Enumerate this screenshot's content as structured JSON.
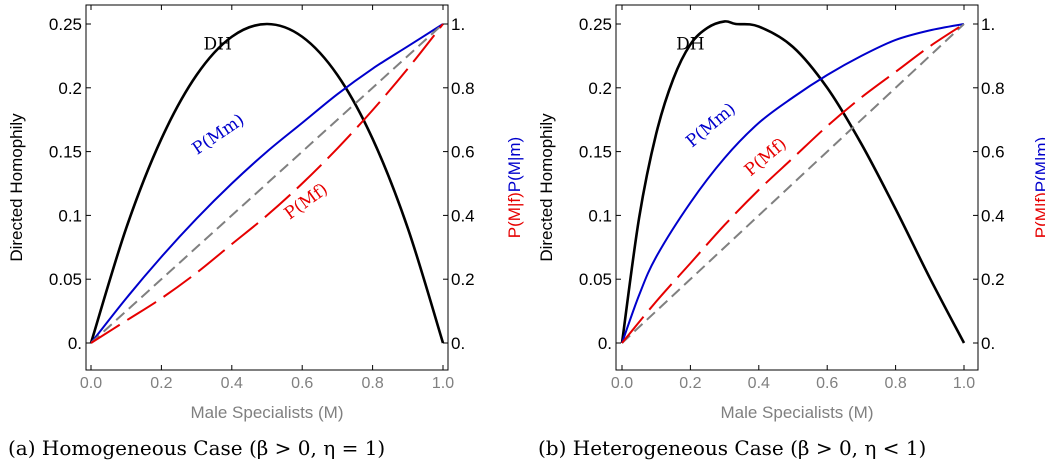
{
  "figure": {
    "captions": [
      "(a) Homogeneous Case (β > 0, η = 1)",
      "(b) Heterogeneous Case (β > 0, η < 1)"
    ]
  },
  "chart_data": [
    {
      "type": "line",
      "panel": "a",
      "xlabel": "Male Specialists (M)",
      "ylabel_left": "Directed Homophily",
      "ylabel_right_parts": [
        {
          "text": "P(M|f)",
          "color": "#e60000"
        },
        {
          "text": "P(M|m)",
          "color": "#0000cc"
        }
      ],
      "xlim": [
        0,
        1
      ],
      "ylim_left": [
        0,
        0.25
      ],
      "ylim_right": [
        0,
        1
      ],
      "x_ticks": [
        "0.0",
        "0.2",
        "0.4",
        "0.6",
        "0.8",
        "1.0"
      ],
      "y_ticks_left": [
        "0.",
        "0.05",
        "0.1",
        "0.15",
        "0.2",
        "0.25"
      ],
      "y_ticks_right": [
        "0.",
        "0.2",
        "0.4",
        "0.6",
        "0.8",
        "1."
      ],
      "grid": false,
      "series": [
        {
          "name": "DH",
          "axis": "left",
          "color": "#000000",
          "style": "solid",
          "x": [
            0,
            0.1,
            0.2,
            0.3,
            0.4,
            0.5,
            0.6,
            0.7,
            0.8,
            0.9,
            1.0
          ],
          "y": [
            0,
            0.09,
            0.16,
            0.21,
            0.24,
            0.25,
            0.24,
            0.21,
            0.16,
            0.09,
            0
          ]
        },
        {
          "name": "P(Mm)",
          "axis": "right",
          "color": "#0000cc",
          "style": "solid",
          "x": [
            0,
            0.1,
            0.2,
            0.3,
            0.4,
            0.5,
            0.6,
            0.7,
            0.8,
            0.9,
            1.0
          ],
          "y": [
            0,
            0.14,
            0.27,
            0.39,
            0.5,
            0.6,
            0.69,
            0.78,
            0.86,
            0.93,
            1.0
          ]
        },
        {
          "name": "",
          "axis": "right",
          "color": "#808080",
          "style": "dashed",
          "x": [
            0,
            1.0
          ],
          "y": [
            0,
            1.0
          ]
        },
        {
          "name": "P(Mf)",
          "axis": "right",
          "color": "#e60000",
          "style": "longdash",
          "x": [
            0,
            0.1,
            0.2,
            0.3,
            0.4,
            0.5,
            0.6,
            0.7,
            0.8,
            0.9,
            1.0
          ],
          "y": [
            0,
            0.07,
            0.14,
            0.22,
            0.31,
            0.4,
            0.5,
            0.61,
            0.73,
            0.86,
            1.0
          ]
        }
      ],
      "annotations": [
        {
          "text": "DH",
          "x": 0.36,
          "y": 0.23,
          "axis": "left",
          "color": "#000000",
          "rotate": 0
        },
        {
          "text": "P(Mm)",
          "x": 0.37,
          "y": 0.64,
          "axis": "right",
          "color": "#0000cc",
          "rotate": -34
        },
        {
          "text": "P(Mf)",
          "x": 0.62,
          "y": 0.43,
          "axis": "right",
          "color": "#e60000",
          "rotate": -36
        }
      ]
    },
    {
      "type": "line",
      "panel": "b",
      "xlabel": "Male Specialists (M)",
      "ylabel_left": "Directed Homophily",
      "ylabel_right_parts": [
        {
          "text": "P(M|f)",
          "color": "#e60000"
        },
        {
          "text": "P(M|m)",
          "color": "#0000cc"
        }
      ],
      "xlim": [
        0,
        1
      ],
      "ylim_left": [
        0,
        0.25
      ],
      "ylim_right": [
        0,
        1
      ],
      "x_ticks": [
        "0.0",
        "0.2",
        "0.4",
        "0.6",
        "0.8",
        "1.0"
      ],
      "y_ticks_left": [
        "0.",
        "0.05",
        "0.1",
        "0.15",
        "0.2",
        "0.25"
      ],
      "y_ticks_right": [
        "0.",
        "0.2",
        "0.4",
        "0.6",
        "0.8",
        "1."
      ],
      "grid": false,
      "series": [
        {
          "name": "DH",
          "axis": "left",
          "color": "#000000",
          "style": "solid",
          "x": [
            0,
            0.05,
            0.1,
            0.15,
            0.2,
            0.25,
            0.3,
            0.333,
            0.4,
            0.5,
            0.6,
            0.7,
            0.8,
            0.9,
            1.0
          ],
          "y": [
            0,
            0.098,
            0.164,
            0.207,
            0.234,
            0.247,
            0.252,
            0.25,
            0.248,
            0.232,
            0.2,
            0.156,
            0.105,
            0.051,
            0
          ]
        },
        {
          "name": "P(Mm)",
          "axis": "right",
          "color": "#0000cc",
          "style": "solid",
          "x": [
            0,
            0.05,
            0.1,
            0.2,
            0.3,
            0.4,
            0.5,
            0.6,
            0.7,
            0.8,
            0.9,
            1.0
          ],
          "y": [
            0,
            0.15,
            0.27,
            0.44,
            0.58,
            0.69,
            0.77,
            0.84,
            0.9,
            0.95,
            0.98,
            1.0
          ]
        },
        {
          "name": "",
          "axis": "right",
          "color": "#808080",
          "style": "dashed",
          "x": [
            0,
            1.0
          ],
          "y": [
            0,
            1.0
          ]
        },
        {
          "name": "P(Mf)",
          "axis": "right",
          "color": "#e60000",
          "style": "longdash",
          "x": [
            0,
            0.1,
            0.2,
            0.3,
            0.4,
            0.5,
            0.6,
            0.7,
            0.8,
            0.9,
            1.0
          ],
          "y": [
            0,
            0.13,
            0.25,
            0.37,
            0.48,
            0.58,
            0.68,
            0.77,
            0.85,
            0.93,
            1.0
          ]
        }
      ],
      "annotations": [
        {
          "text": "DH",
          "x": 0.2,
          "y": 0.23,
          "axis": "left",
          "color": "#000000",
          "rotate": 0
        },
        {
          "text": "P(Mm)",
          "x": 0.27,
          "y": 0.67,
          "axis": "right",
          "color": "#0000cc",
          "rotate": -40
        },
        {
          "text": "P(Mf)",
          "x": 0.43,
          "y": 0.57,
          "axis": "right",
          "color": "#e60000",
          "rotate": -40
        }
      ]
    }
  ]
}
